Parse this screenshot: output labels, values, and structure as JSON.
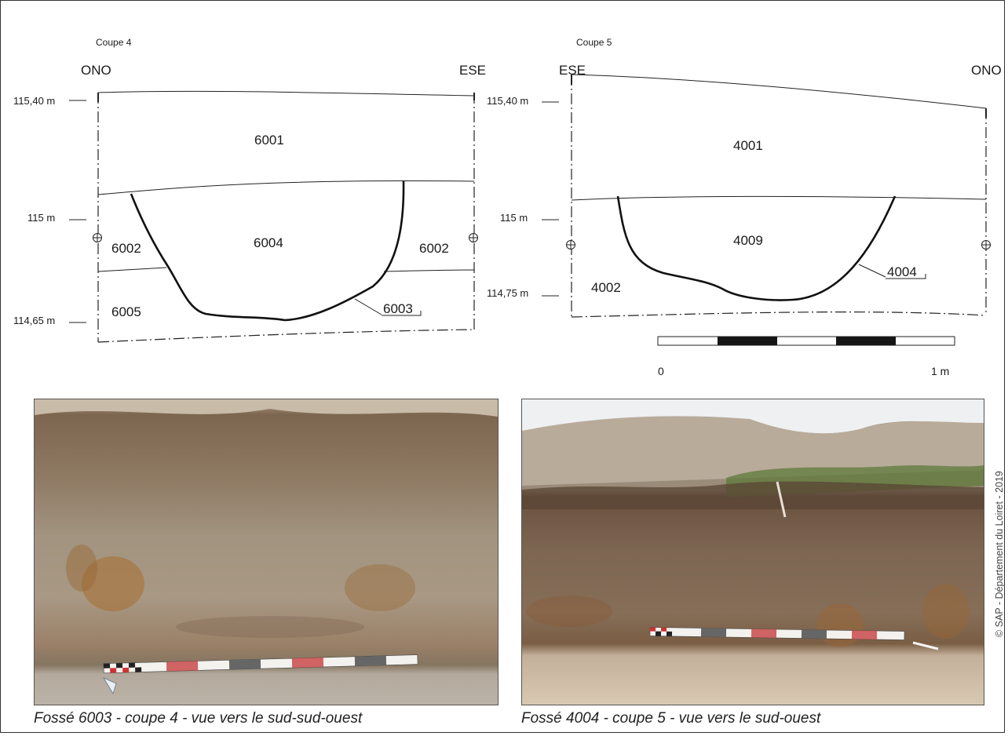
{
  "coupe4": {
    "title": "Coupe 4",
    "left_orientation": "ONO",
    "right_orientation": "ESE",
    "elevations": [
      "115,40 m",
      "115 m",
      "114,65 m"
    ],
    "layers": {
      "top": "6001",
      "fill": "6004",
      "left_side": "6002",
      "right_side": "6002",
      "bottom": "6005",
      "cut": "6003"
    }
  },
  "coupe5": {
    "title": "Coupe 5",
    "left_orientation": "ESE",
    "right_orientation": "ONO",
    "elevations": [
      "115,40 m",
      "115 m",
      "114,75 m"
    ],
    "layers": {
      "top": "4001",
      "fill": "4009",
      "side": "4002",
      "cut": "4004"
    }
  },
  "scale_bar": {
    "start_label": "0",
    "end_label": "1 m",
    "segments": 5
  },
  "photos": [
    {
      "caption": "Fossé 6003 - coupe 4 - vue vers le sud-sud-ouest"
    },
    {
      "caption": "Fossé 4004 - coupe 5 - vue vers le sud-ouest"
    }
  ],
  "copyright": "© SAP - Département du Loiret - 2019"
}
